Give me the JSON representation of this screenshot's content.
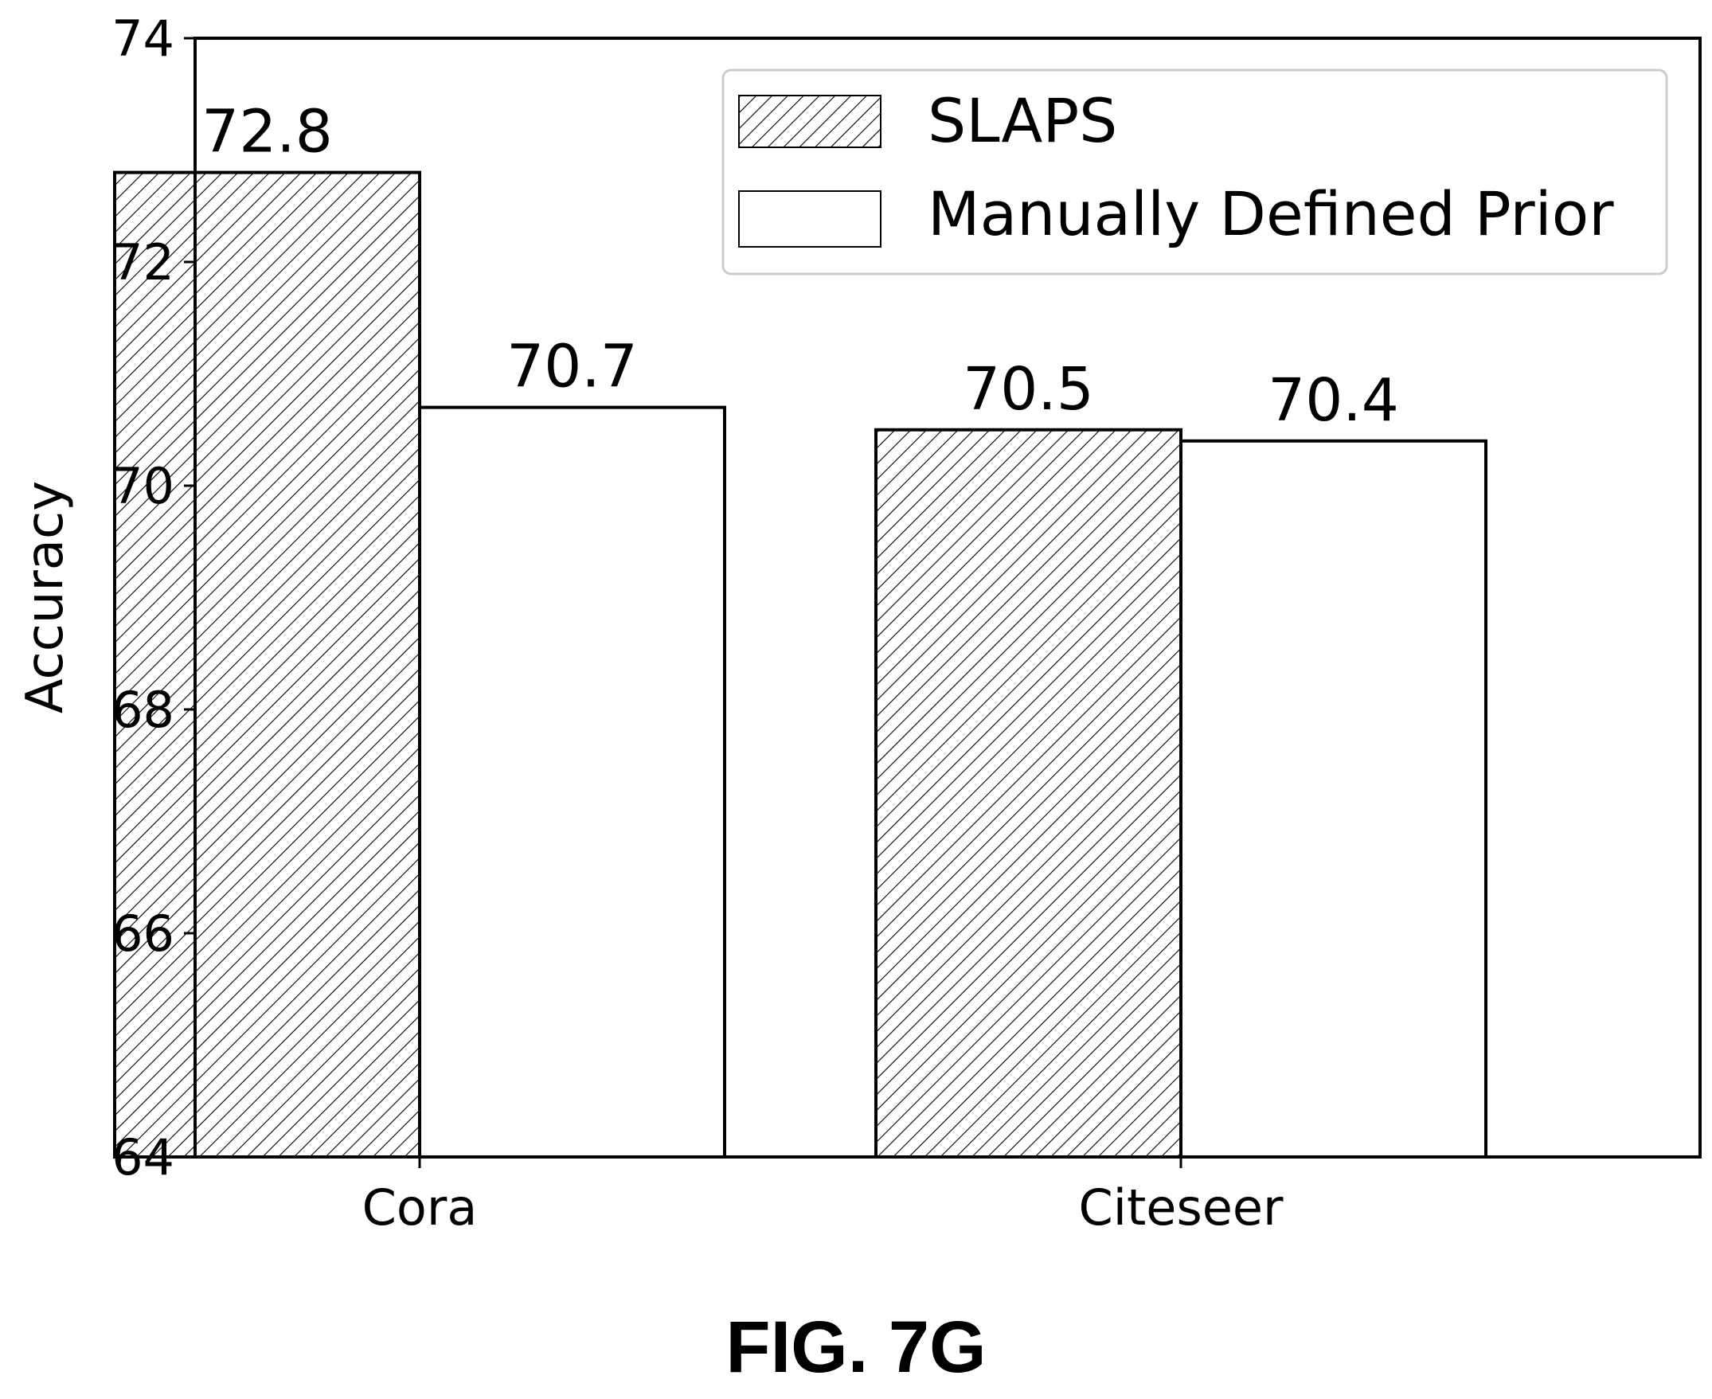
{
  "chart_data": {
    "type": "bar",
    "categories": [
      "Cora",
      "Citeseer"
    ],
    "series": [
      {
        "name": "SLAPS",
        "values": [
          72.8,
          70.5
        ],
        "data_labels": [
          "72.8",
          "70.5"
        ],
        "fill": "hatched"
      },
      {
        "name": "Manually Defined Prior",
        "values": [
          70.7,
          70.4
        ],
        "data_labels": [
          "70.7",
          "70.4"
        ],
        "fill": "white"
      }
    ],
    "ylabel": "Accuracy",
    "xlabel": "",
    "ylim": [
      64,
      74
    ],
    "yticks": [
      64,
      66,
      68,
      70,
      72,
      74
    ],
    "grid": false,
    "legend_position": "top-right"
  },
  "caption": "FIG. 7G",
  "colors": {
    "bar_edge": "#000000",
    "hatch": "#000000",
    "background": "#ffffff"
  }
}
